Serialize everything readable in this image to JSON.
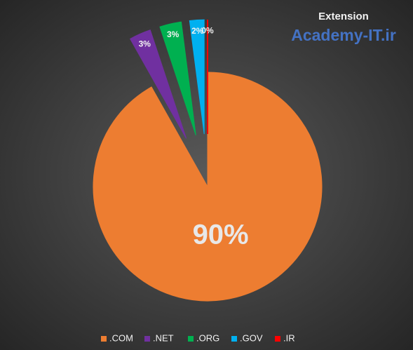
{
  "chart_data": {
    "type": "pie",
    "title": "Extension",
    "annotation": "Academy-IT.ir",
    "categories": [
      ".COM",
      ".NET",
      ".ORG",
      ".GOV",
      ".IR"
    ],
    "values": [
      90,
      3,
      3,
      2,
      0
    ],
    "value_labels": [
      "90%",
      "3%",
      "3%",
      "2%",
      "0%"
    ],
    "colors": [
      "#ed7d31",
      "#7030a0",
      "#00b050",
      "#00b0f0",
      "#ff0000"
    ],
    "legend": "bottom"
  }
}
